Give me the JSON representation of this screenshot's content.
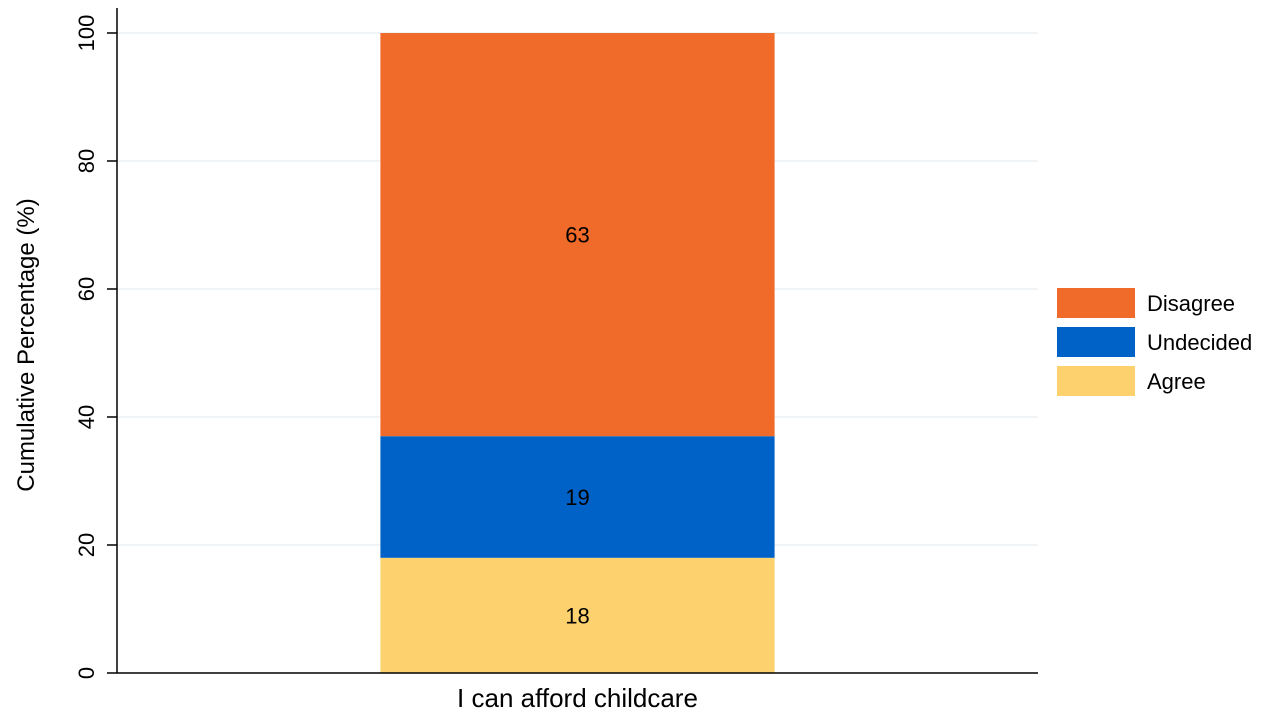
{
  "chart_data": {
    "type": "bar",
    "stacked": true,
    "categories": [
      "I can afford childcare"
    ],
    "series": [
      {
        "name": "Agree",
        "values": [
          18
        ],
        "color": "#FDD26E"
      },
      {
        "name": "Undecided",
        "values": [
          19
        ],
        "color": "#0062C6"
      },
      {
        "name": "Disagree",
        "values": [
          63
        ],
        "color": "#F06A29"
      }
    ],
    "data_labels": [
      "18",
      "19",
      "63"
    ],
    "title": "",
    "xlabel": "",
    "ylabel": "Cumulative Percentage (%)",
    "ylim": [
      0,
      100
    ],
    "yticks": [
      "0",
      "20",
      "40",
      "60",
      "80",
      "100"
    ],
    "grid": true,
    "legend": {
      "placement": "right",
      "order": [
        "Disagree",
        "Undecided",
        "Agree"
      ]
    }
  }
}
